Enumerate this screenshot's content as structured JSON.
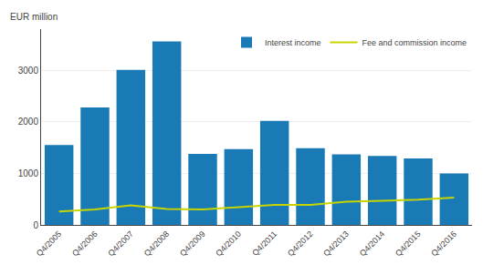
{
  "chart_data": {
    "type": "bar",
    "categories": [
      "Q4/2005",
      "Q4/2006",
      "Q4/2007",
      "Q4/2008",
      "Q4/2009",
      "Q4/2010",
      "Q4/2011",
      "Q4/2012",
      "Q4/2013",
      "Q4/2014",
      "Q4/2015",
      "Q4/2016"
    ],
    "series": [
      {
        "name": "Interest income",
        "type": "bar",
        "color": "#1a7ab5",
        "values": [
          1550,
          2280,
          3010,
          3560,
          1380,
          1470,
          2020,
          1490,
          1370,
          1340,
          1290,
          1000
        ]
      },
      {
        "name": "Fee and commission income",
        "type": "line",
        "color": "#c8d400",
        "values": [
          260,
          300,
          380,
          310,
          300,
          340,
          390,
          390,
          450,
          470,
          490,
          530
        ]
      }
    ],
    "ylabel": "EUR million",
    "ylim": [
      0,
      3800
    ],
    "yticks": [
      0,
      1000,
      2000,
      3000
    ],
    "grid": true,
    "legend": "upper right"
  }
}
